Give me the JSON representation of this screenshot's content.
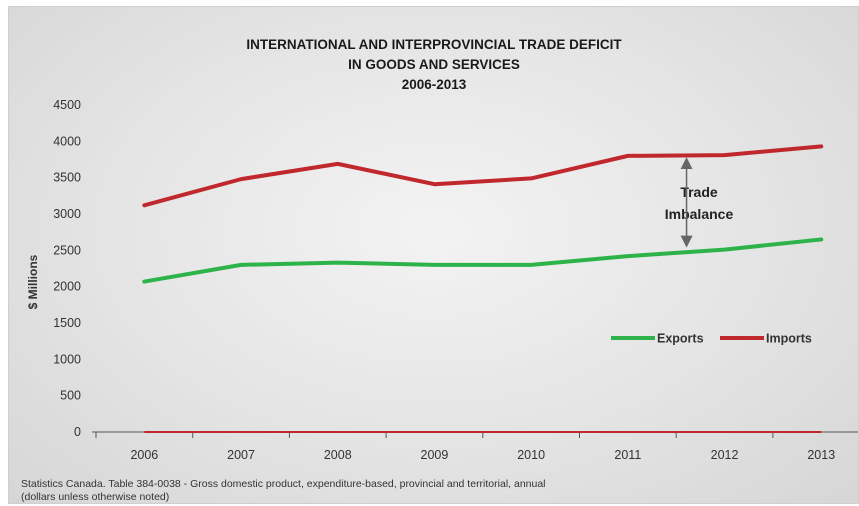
{
  "chart_data": {
    "type": "line",
    "title": [
      "INTERNATIONAL AND INTERPROVINCIAL TRADE DEFICIT",
      "IN GOODS AND SERVICES",
      "2006-2013"
    ],
    "ylabel": "$ Millions",
    "xlabel": "",
    "x": [
      "2006",
      "2007",
      "2008",
      "2009",
      "2010",
      "2011",
      "2012",
      "2013"
    ],
    "ylim": [
      0,
      4500
    ],
    "yticks": [
      0,
      500,
      1000,
      1500,
      2000,
      2500,
      3000,
      3500,
      4000,
      4500
    ],
    "grid": false,
    "legend": "right",
    "series": [
      {
        "name": "Exports",
        "color": "#2db34a",
        "values": [
          2070,
          2300,
          2330,
          2300,
          2300,
          2420,
          2510,
          2650
        ]
      },
      {
        "name": "Imports",
        "color": "#c0282d",
        "values": [
          3120,
          3480,
          3690,
          3410,
          3490,
          3800,
          3810,
          3930
        ]
      }
    ],
    "zero_line_color": "#c0282d",
    "annotation": {
      "lines": [
        "Trade",
        "Imbalance"
      ],
      "arrow_year": "2012",
      "arrow_from": 3810,
      "arrow_to": 2510
    }
  },
  "source": {
    "line1": "Statistics Canada. Table 384-0038 - Gross domestic product, expenditure-based, provincial and territorial, annual",
    "line2": "(dollars unless otherwise noted)"
  }
}
